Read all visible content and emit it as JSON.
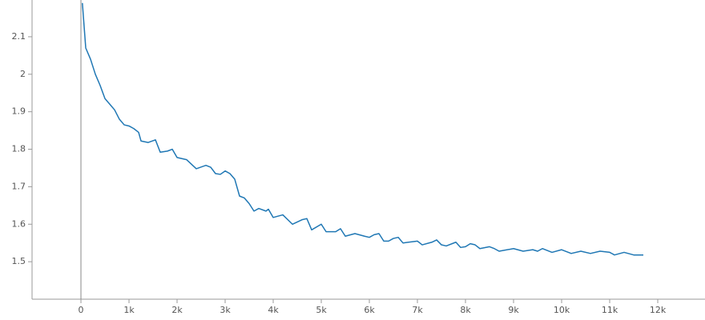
{
  "chart_data": {
    "type": "line",
    "x": [
      30,
      100,
      200,
      300,
      400,
      500,
      600,
      700,
      800,
      900,
      1000,
      1100,
      1200,
      1250,
      1400,
      1550,
      1650,
      1800,
      1900,
      2000,
      2200,
      2400,
      2600,
      2700,
      2800,
      2900,
      3000,
      3100,
      3200,
      3300,
      3400,
      3500,
      3600,
      3700,
      3850,
      3900,
      4000,
      4200,
      4400,
      4600,
      4700,
      4800,
      5000,
      5100,
      5300,
      5400,
      5500,
      5700,
      5900,
      6000,
      6100,
      6200,
      6300,
      6400,
      6500,
      6600,
      6700,
      7000,
      7100,
      7300,
      7400,
      7500,
      7600,
      7800,
      7900,
      8000,
      8100,
      8200,
      8300,
      8500,
      8600,
      8700,
      9000,
      9200,
      9400,
      9500,
      9600,
      9800,
      10000,
      10200,
      10400,
      10600,
      10800,
      11000,
      11100,
      11300,
      11500,
      11700
    ],
    "series": [
      {
        "color": "#1f77b4",
        "values": [
          2.19,
          2.07,
          2.04,
          2.0,
          1.97,
          1.935,
          1.92,
          1.905,
          1.88,
          1.865,
          1.862,
          1.855,
          1.845,
          1.822,
          1.818,
          1.825,
          1.792,
          1.795,
          1.8,
          1.778,
          1.772,
          1.748,
          1.757,
          1.752,
          1.735,
          1.733,
          1.742,
          1.735,
          1.72,
          1.675,
          1.67,
          1.655,
          1.635,
          1.642,
          1.635,
          1.64,
          1.618,
          1.625,
          1.6,
          1.612,
          1.615,
          1.585,
          1.6,
          1.58,
          1.58,
          1.588,
          1.568,
          1.575,
          1.568,
          1.565,
          1.572,
          1.575,
          1.555,
          1.555,
          1.562,
          1.565,
          1.55,
          1.555,
          1.545,
          1.552,
          1.558,
          1.545,
          1.542,
          1.552,
          1.538,
          1.54,
          1.548,
          1.545,
          1.535,
          1.54,
          1.535,
          1.528,
          1.535,
          1.528,
          1.532,
          1.528,
          1.535,
          1.525,
          1.532,
          1.522,
          1.528,
          1.522,
          1.528,
          1.525,
          1.518,
          1.525,
          1.518,
          1.518
        ]
      }
    ],
    "xlim": [
      -1017,
      12983
    ],
    "ylim": [
      1.4,
      2.198
    ],
    "xticks": [
      0,
      {
        "value": 1000,
        "label": "1k"
      },
      {
        "value": 2000,
        "label": "2k"
      },
      {
        "value": 3000,
        "label": "3k"
      },
      {
        "value": 4000,
        "label": "4k"
      },
      {
        "value": 5000,
        "label": "5k"
      },
      {
        "value": 6000,
        "label": "6k"
      },
      {
        "value": 7000,
        "label": "7k"
      },
      {
        "value": 8000,
        "label": "8k"
      },
      {
        "value": 9000,
        "label": "9k"
      },
      {
        "value": 10000,
        "label": "10k"
      },
      {
        "value": 11000,
        "label": "11k"
      },
      {
        "value": 12000,
        "label": "12k"
      }
    ],
    "yticks": [
      1.5,
      1.6,
      1.7,
      1.8,
      1.9,
      2,
      2.1
    ]
  }
}
